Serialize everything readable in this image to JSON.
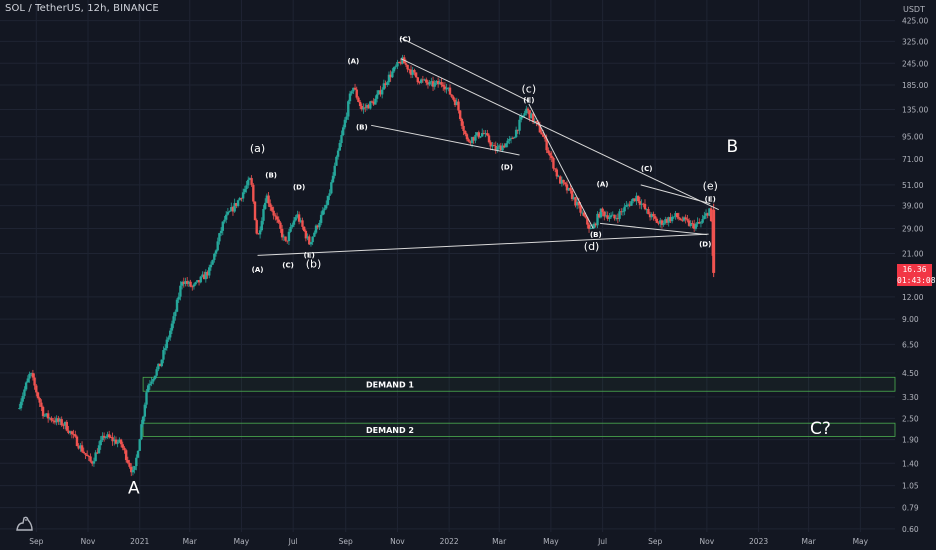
{
  "header": {
    "symbol_line": "SOL / TetherUS, 12h, BINANCE"
  },
  "axis": {
    "currency": "USDT"
  },
  "price_tag": {
    "price": "16.36",
    "countdown": "01:43:08"
  },
  "zones": [
    {
      "label": "DEMAND 1",
      "low": 3.55,
      "high": 4.25
    },
    {
      "label": "DEMAND 2",
      "low": 1.98,
      "high": 2.35
    }
  ],
  "colors": {
    "background": "#131722",
    "grid": "#1f2433",
    "up": "#26a69a",
    "down": "#ef5350",
    "text": "#b2b5be",
    "annotation": "#ffffff",
    "zone": "#4caf50",
    "price_tag": "#f23645"
  },
  "chart_data": {
    "type": "candlestick",
    "title": "SOL / TetherUS, 12h, BINANCE",
    "y_scale": "log",
    "ylim": [
      0.52,
      520
    ],
    "x_tick_labels": [
      "Sep",
      "Nov",
      "2021",
      "Mar",
      "May",
      "Jul",
      "Sep",
      "Nov",
      "2022",
      "Mar",
      "May",
      "Jul",
      "Sep",
      "Nov",
      "2023",
      "Mar",
      "May"
    ],
    "y_tick_labels": [
      "425.00",
      "325.00",
      "245.00",
      "185.00",
      "135.00",
      "95.00",
      "71.00",
      "51.00",
      "39.00",
      "29.00",
      "21.00",
      "12.00",
      "9.00",
      "6.50",
      "4.50",
      "3.30",
      "2.50",
      "1.90",
      "1.40",
      "1.05",
      "0.79",
      "0.60"
    ],
    "y_tick_values": [
      425,
      325,
      245,
      185,
      135,
      95,
      71,
      51,
      39,
      29,
      21,
      12,
      9,
      6.5,
      4.5,
      3.3,
      2.5,
      1.9,
      1.4,
      1.05,
      0.79,
      0.6
    ],
    "price_path": [
      [
        "2020-08-12",
        3.0
      ],
      [
        "2020-08-25",
        4.5
      ],
      [
        "2020-09-10",
        2.6
      ],
      [
        "2020-10-05",
        2.3
      ],
      [
        "2020-11-05",
        1.4
      ],
      [
        "2020-11-20",
        2.0
      ],
      [
        "2020-12-10",
        1.8
      ],
      [
        "2020-12-25",
        1.2
      ],
      [
        "2021-01-10",
        3.8
      ],
      [
        "2021-01-25",
        5.0
      ],
      [
        "2021-02-10",
        9.0
      ],
      [
        "2021-02-20",
        15.0
      ],
      [
        "2021-03-05",
        13.5
      ],
      [
        "2021-03-25",
        17.0
      ],
      [
        "2021-04-10",
        32.0
      ],
      [
        "2021-04-25",
        40.0
      ],
      [
        "2021-05-12",
        55.0
      ],
      [
        "2021-05-20",
        25.0
      ],
      [
        "2021-05-30",
        45.0
      ],
      [
        "2021-06-22",
        24.0
      ],
      [
        "2021-07-05",
        35.0
      ],
      [
        "2021-07-20",
        24.0
      ],
      [
        "2021-08-10",
        40.0
      ],
      [
        "2021-08-28",
        100.0
      ],
      [
        "2021-09-09",
        185.0
      ],
      [
        "2021-09-20",
        135.0
      ],
      [
        "2021-10-05",
        150.0
      ],
      [
        "2021-10-20",
        200.0
      ],
      [
        "2021-11-06",
        255.0
      ],
      [
        "2021-11-25",
        200.0
      ],
      [
        "2021-12-10",
        185.0
      ],
      [
        "2021-12-25",
        190.0
      ],
      [
        "2022-01-10",
        145.0
      ],
      [
        "2022-01-22",
        90.0
      ],
      [
        "2022-02-10",
        100.0
      ],
      [
        "2022-02-24",
        80.0
      ],
      [
        "2022-03-15",
        90.0
      ],
      [
        "2022-04-02",
        135.0
      ],
      [
        "2022-04-20",
        100.0
      ],
      [
        "2022-05-10",
        55.0
      ],
      [
        "2022-05-25",
        45.0
      ],
      [
        "2022-06-18",
        28.0
      ],
      [
        "2022-06-28",
        36.0
      ],
      [
        "2022-07-15",
        33.0
      ],
      [
        "2022-08-10",
        44.0
      ],
      [
        "2022-08-22",
        36.0
      ],
      [
        "2022-09-05",
        31.0
      ],
      [
        "2022-09-25",
        34.0
      ],
      [
        "2022-10-15",
        30.0
      ],
      [
        "2022-10-25",
        31.0
      ],
      [
        "2022-11-05",
        38.0
      ],
      [
        "2022-11-09",
        16.36
      ]
    ],
    "trendlines": [
      [
        [
          "2021-05-20",
          20.5
        ],
        [
          "2022-11-03",
          27.0
        ]
      ],
      [
        [
          "2021-11-05",
          340
        ],
        [
          "2022-04-05",
          150
        ]
      ],
      [
        [
          "2021-11-05",
          260
        ],
        [
          "2022-11-15",
          37
        ]
      ],
      [
        [
          "2021-10-01",
          110
        ],
        [
          "2022-03-25",
          75
        ]
      ],
      [
        [
          "2022-08-15",
          51
        ],
        [
          "2022-11-05",
          40
        ]
      ],
      [
        [
          "2022-06-28",
          31
        ],
        [
          "2022-11-01",
          26.8
        ]
      ],
      [
        [
          "2022-04-05",
          145
        ],
        [
          "2022-06-20",
          29
        ]
      ]
    ],
    "annotations": [
      {
        "text": "A",
        "x": "2020-12-25",
        "y": 0.95,
        "size": "xl"
      },
      {
        "text": "B",
        "x": "2022-12-01",
        "y": 78,
        "size": "xl"
      },
      {
        "text": "C?",
        "x": "2023-03-15",
        "y": 2.05,
        "size": "xl"
      },
      {
        "text": "(a)",
        "x": "2021-05-20",
        "y": 78,
        "size": "m"
      },
      {
        "text": "(b)",
        "x": "2021-07-25",
        "y": 17.5,
        "size": "m"
      },
      {
        "text": "(c)",
        "x": "2022-04-05",
        "y": 168,
        "size": "m"
      },
      {
        "text": "(d)",
        "x": "2022-06-18",
        "y": 22,
        "size": "m"
      },
      {
        "text": "(e)",
        "x": "2022-11-05",
        "y": 48,
        "size": "m"
      },
      {
        "text": "(A)",
        "x": "2021-09-10",
        "y": 245,
        "size": "s"
      },
      {
        "text": "(B)",
        "x": "2021-09-20",
        "y": 104,
        "size": "s"
      },
      {
        "text": "(C)",
        "x": "2021-11-10",
        "y": 325,
        "size": "s"
      },
      {
        "text": "(D)",
        "x": "2022-03-10",
        "y": 62,
        "size": "s"
      },
      {
        "text": "(E)",
        "x": "2022-04-05",
        "y": 148,
        "size": "s"
      },
      {
        "text": "(A)",
        "x": "2021-05-20",
        "y": 16.5,
        "size": "s"
      },
      {
        "text": "(B)",
        "x": "2021-06-05",
        "y": 56,
        "size": "s"
      },
      {
        "text": "(C)",
        "x": "2021-06-25",
        "y": 17.5,
        "size": "s"
      },
      {
        "text": "(D)",
        "x": "2021-07-08",
        "y": 48,
        "size": "s"
      },
      {
        "text": "(E)",
        "x": "2021-07-20",
        "y": 20,
        "size": "s"
      },
      {
        "text": "(A)",
        "x": "2022-07-01",
        "y": 50,
        "size": "s"
      },
      {
        "text": "(B)",
        "x": "2022-06-23",
        "y": 26,
        "size": "s"
      },
      {
        "text": "(C)",
        "x": "2022-08-22",
        "y": 61,
        "size": "s"
      },
      {
        "text": "(D)",
        "x": "2022-10-30",
        "y": 23,
        "size": "s"
      },
      {
        "text": "(E)",
        "x": "2022-11-05",
        "y": 41,
        "size": "s"
      }
    ]
  }
}
